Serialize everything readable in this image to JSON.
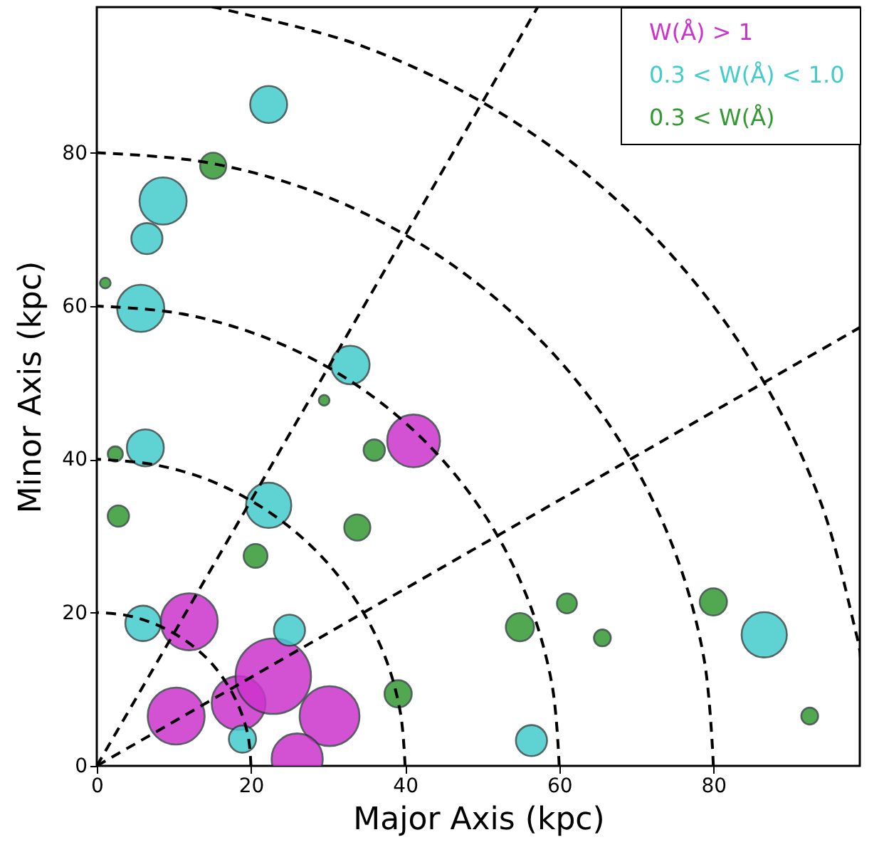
{
  "chart_data": {
    "type": "bubble",
    "xlabel": "Major Axis (kpc)",
    "ylabel": "Minor Axis (kpc)",
    "xlim": [
      0,
      99
    ],
    "ylim": [
      0,
      99
    ],
    "xticks": [
      0,
      20,
      40,
      60,
      80
    ],
    "yticks": [
      0,
      20,
      40,
      60,
      80
    ],
    "grid": false,
    "legend": "top right",
    "marker": "circle",
    "series": [
      {
        "name": "W(Å) > 1",
        "color": "#cc33cc",
        "x": [
          41.1,
          12.0,
          10.3,
          18.4,
          22.9,
          30.2,
          26.0
        ],
        "values": [
          42.4,
          18.8,
          6.5,
          8.2,
          11.7,
          6.5,
          0.9
        ],
        "sizes": [
          0.49,
          0.57,
          0.57,
          0.51,
          1,
          0.63,
          0.46
        ]
      },
      {
        "name": "0.3 < W(Å) < 1.0",
        "color": "#44cccc",
        "x": [
          22.3,
          8.6,
          6.5,
          5.7,
          32.9,
          6.3,
          22.3,
          6.0,
          25.0,
          18.9,
          56.4,
          86.6
        ],
        "values": [
          86.3,
          73.7,
          68.8,
          59.7,
          52.3,
          41.5,
          34.0,
          18.6,
          17.7,
          3.5,
          3.3,
          17.1
        ],
        "sizes": [
          0.24,
          0.39,
          0.17,
          0.39,
          0.26,
          0.24,
          0.36,
          0.22,
          0.17,
          0.13,
          0.17,
          0.36
        ]
      },
      {
        "name": "0.3 < W(Å)",
        "color": "#339933",
        "x": [
          15.1,
          1.1,
          29.5,
          2.4,
          2.8,
          36.0,
          33.8,
          20.6,
          39.1,
          54.9,
          61.0,
          65.6,
          80.0,
          92.5
        ],
        "values": [
          78.3,
          63.0,
          47.7,
          40.7,
          32.6,
          41.2,
          31.1,
          27.4,
          9.4,
          18.1,
          21.2,
          16.7,
          21.4,
          6.5
        ],
        "sizes": [
          0.12,
          0.02,
          0.02,
          0.04,
          0.08,
          0.08,
          0.12,
          0.1,
          0.13,
          0.14,
          0.07,
          0.05,
          0.13,
          0.05
        ]
      },
      {
        "type": "line",
        "color": "#000000",
        "line_style": "dashed",
        "marker": "none",
        "x": [
          20,
          19.7,
          18.8,
          17.3,
          15.3,
          12.9,
          10,
          6.8,
          3.5,
          0
        ],
        "values": [
          0,
          3.5,
          6.8,
          10,
          12.9,
          15.3,
          17.3,
          18.8,
          19.7,
          20
        ]
      },
      {
        "type": "line",
        "color": "#000000",
        "line_style": "dashed",
        "marker": "none",
        "x": [
          40,
          39.4,
          37.6,
          34.6,
          30.6,
          25.7,
          20,
          13.7,
          6.9,
          0
        ],
        "values": [
          0,
          6.9,
          13.7,
          20,
          25.7,
          30.6,
          34.6,
          37.6,
          39.4,
          40
        ]
      },
      {
        "type": "line",
        "color": "#000000",
        "line_style": "dashed",
        "marker": "none",
        "x": [
          60,
          59.1,
          56.4,
          52,
          46,
          38.6,
          30,
          20.5,
          10.4,
          0
        ],
        "values": [
          0,
          10.4,
          20.5,
          30,
          38.6,
          46,
          52,
          56.4,
          59.1,
          60
        ]
      },
      {
        "type": "line",
        "color": "#000000",
        "line_style": "dashed",
        "marker": "none",
        "x": [
          80,
          78.8,
          75.2,
          69.3,
          61.3,
          51.4,
          40,
          27.4,
          13.9,
          0
        ],
        "values": [
          0,
          13.9,
          27.4,
          40,
          51.4,
          61.3,
          69.3,
          75.2,
          78.8,
          80
        ]
      },
      {
        "type": "line",
        "color": "#000000",
        "line_style": "dashed",
        "marker": "none",
        "x": [
          99,
          98.5,
          94,
          86.6,
          76.6,
          64.3,
          50,
          34.2,
          17.4,
          14.1
        ],
        "values": [
          14.1,
          17.4,
          34.2,
          50,
          64.3,
          76.6,
          86.6,
          94,
          98.5,
          99
        ]
      },
      {
        "type": "line",
        "color": "#000000",
        "line_style": "dashed",
        "marker": "none",
        "x": [
          0,
          99
        ],
        "values": [
          0,
          57.2
        ]
      },
      {
        "type": "line",
        "color": "#000000",
        "line_style": "dashed",
        "marker": "none",
        "x": [
          0,
          57.2
        ],
        "values": [
          0,
          99
        ]
      }
    ]
  }
}
